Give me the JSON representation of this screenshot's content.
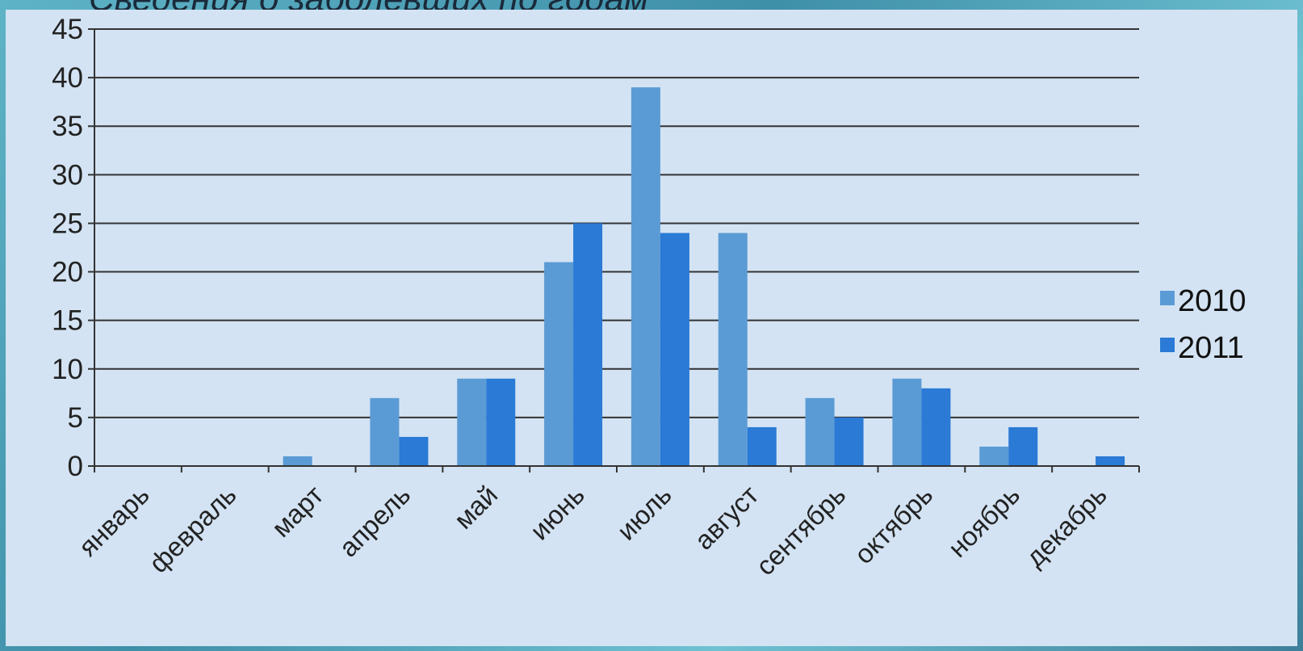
{
  "slide": {
    "title_fragment": "Сведения о заболевших по годам"
  },
  "chart_data": {
    "type": "bar",
    "title": "",
    "xlabel": "",
    "ylabel": "",
    "ylim": [
      0,
      45
    ],
    "yticks": [
      0,
      5,
      10,
      15,
      20,
      25,
      30,
      35,
      40,
      45
    ],
    "grid": true,
    "legend_position": "right",
    "categories": [
      "январь",
      "февраль",
      "март",
      "апрель",
      "май",
      "июнь",
      "июль",
      "август",
      "сентябрь",
      "октябрь",
      "ноябрь",
      "декабрь"
    ],
    "series": [
      {
        "name": "2010",
        "color": "#5b9bd5",
        "values": [
          0,
          0,
          1,
          7,
          9,
          21,
          39,
          24,
          7,
          9,
          2,
          0
        ]
      },
      {
        "name": "2011",
        "color": "#2a7ad6",
        "values": [
          0,
          0,
          0,
          3,
          9,
          25,
          24,
          4,
          5,
          8,
          4,
          1
        ]
      }
    ]
  }
}
